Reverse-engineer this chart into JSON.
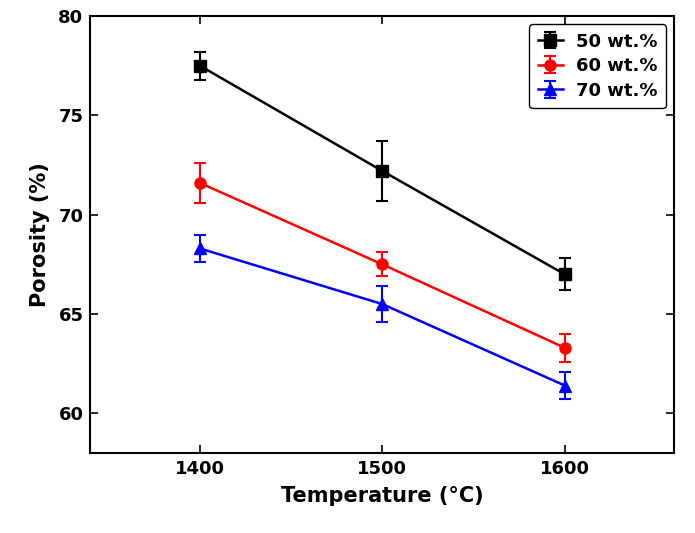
{
  "temperatures": [
    1400,
    1500,
    1600
  ],
  "series": [
    {
      "label": "50 wt.%",
      "color": "#000000",
      "marker": "s",
      "values": [
        77.5,
        72.2,
        67.0
      ],
      "yerr": [
        0.7,
        1.5,
        0.8
      ]
    },
    {
      "label": "60 wt.%",
      "color": "#ff0000",
      "marker": "o",
      "values": [
        71.6,
        67.5,
        63.3
      ],
      "yerr": [
        1.0,
        0.6,
        0.7
      ]
    },
    {
      "label": "70 wt.%",
      "color": "#0000ff",
      "marker": "^",
      "values": [
        68.3,
        65.5,
        61.4
      ],
      "yerr": [
        0.7,
        0.9,
        0.7
      ]
    }
  ],
  "xlabel": "Temperature (°C)",
  "ylabel": "Porosity (%)",
  "xlim": [
    1340,
    1660
  ],
  "ylim": [
    58,
    80
  ],
  "yticks": [
    60,
    65,
    70,
    75,
    80
  ],
  "xticks": [
    1400,
    1500,
    1600
  ],
  "legend_loc": "upper right",
  "background_color": "#ffffff",
  "markersize": 8,
  "linewidth": 1.8,
  "capsize": 4
}
